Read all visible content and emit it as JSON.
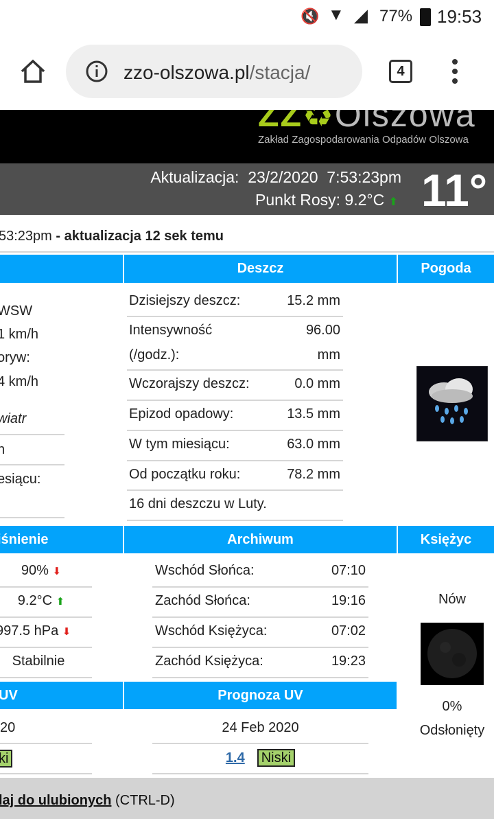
{
  "status_bar": {
    "battery": "77%",
    "time": "19:53"
  },
  "browser": {
    "url_domain": "zzo-olszowa.pl",
    "url_path": "/stacja/",
    "tab_count": "4"
  },
  "logo": {
    "text": "ZZO Olszowa",
    "subtitle": "Zakład Zagospodarowania Odpadów Olszowa"
  },
  "banner": {
    "update_label": "Aktualizacja:  23/2/2020  7:53:23pm",
    "dew_point": "Punkt Rosy: 9.2°C",
    "temperature": "11°"
  },
  "update_line": {
    "time": "53:23pm",
    "ago": " - aktualizacja 12 sek temu"
  },
  "section1": {
    "headers": {
      "wind": "",
      "rain": "Deszcz",
      "weather": "Pogoda"
    },
    "wind": [
      "WSW",
      "1 km/h",
      "oryw:",
      "4 km/h",
      "wiatr",
      "n",
      "esiącu:"
    ],
    "rain": [
      {
        "label": "Dzisiejszy deszcz:",
        "value": "15.2 mm"
      },
      {
        "label": "Intensywność",
        "label2": "(/godz.):",
        "value": "96.00",
        "value2": "mm"
      },
      {
        "label": "Wczorajszy deszcz:",
        "value": "0.0 mm"
      },
      {
        "label": "Epizod opadowy:",
        "value": "13.5 mm"
      },
      {
        "label": "W tym miesiącu:",
        "value": "63.0 mm"
      },
      {
        "label": "Od początku roku:",
        "value": "78.2 mm"
      }
    ],
    "rain_days": "16 dni deszczu w Luty."
  },
  "section2": {
    "headers": {
      "pressure": "iśnienie",
      "archive": "Archiwum",
      "moon": "Księżyc"
    },
    "pressure": [
      {
        "value": "90%",
        "trend": "down"
      },
      {
        "value": "9.2°C",
        "trend": "up"
      },
      {
        "value": "997.5 hPa",
        "trend": "down"
      },
      {
        "value": "Stabilnie"
      }
    ],
    "archive": [
      {
        "label": "Wschód Słońca:",
        "value": "07:10"
      },
      {
        "label": "Zachód Słońca:",
        "value": "19:16"
      },
      {
        "label": "Wschód Księżyca:",
        "value": "07:02"
      },
      {
        "label": "Zachód Księżyca:",
        "value": "19:23"
      }
    ],
    "moon": {
      "phase": "Nów",
      "percent": "0%",
      "visible": "Odsłonięty"
    }
  },
  "section3": {
    "headers": {
      "uv": "UV",
      "forecast": "Prognoza UV"
    },
    "uv_date": "20",
    "uv_badge": "ki",
    "forecast_date": "24 Feb 2020",
    "forecast_value": "1.4",
    "forecast_badge": "Niski"
  },
  "footer": {
    "link": "laj do ulubionych",
    "shortcut": " (CTRL-D)"
  },
  "colors": {
    "header_blue": "#03a3fb",
    "badge_green": "#a4d16b",
    "banner_gray": "#4f4f4f",
    "logo_green": "#a8cc1c"
  }
}
